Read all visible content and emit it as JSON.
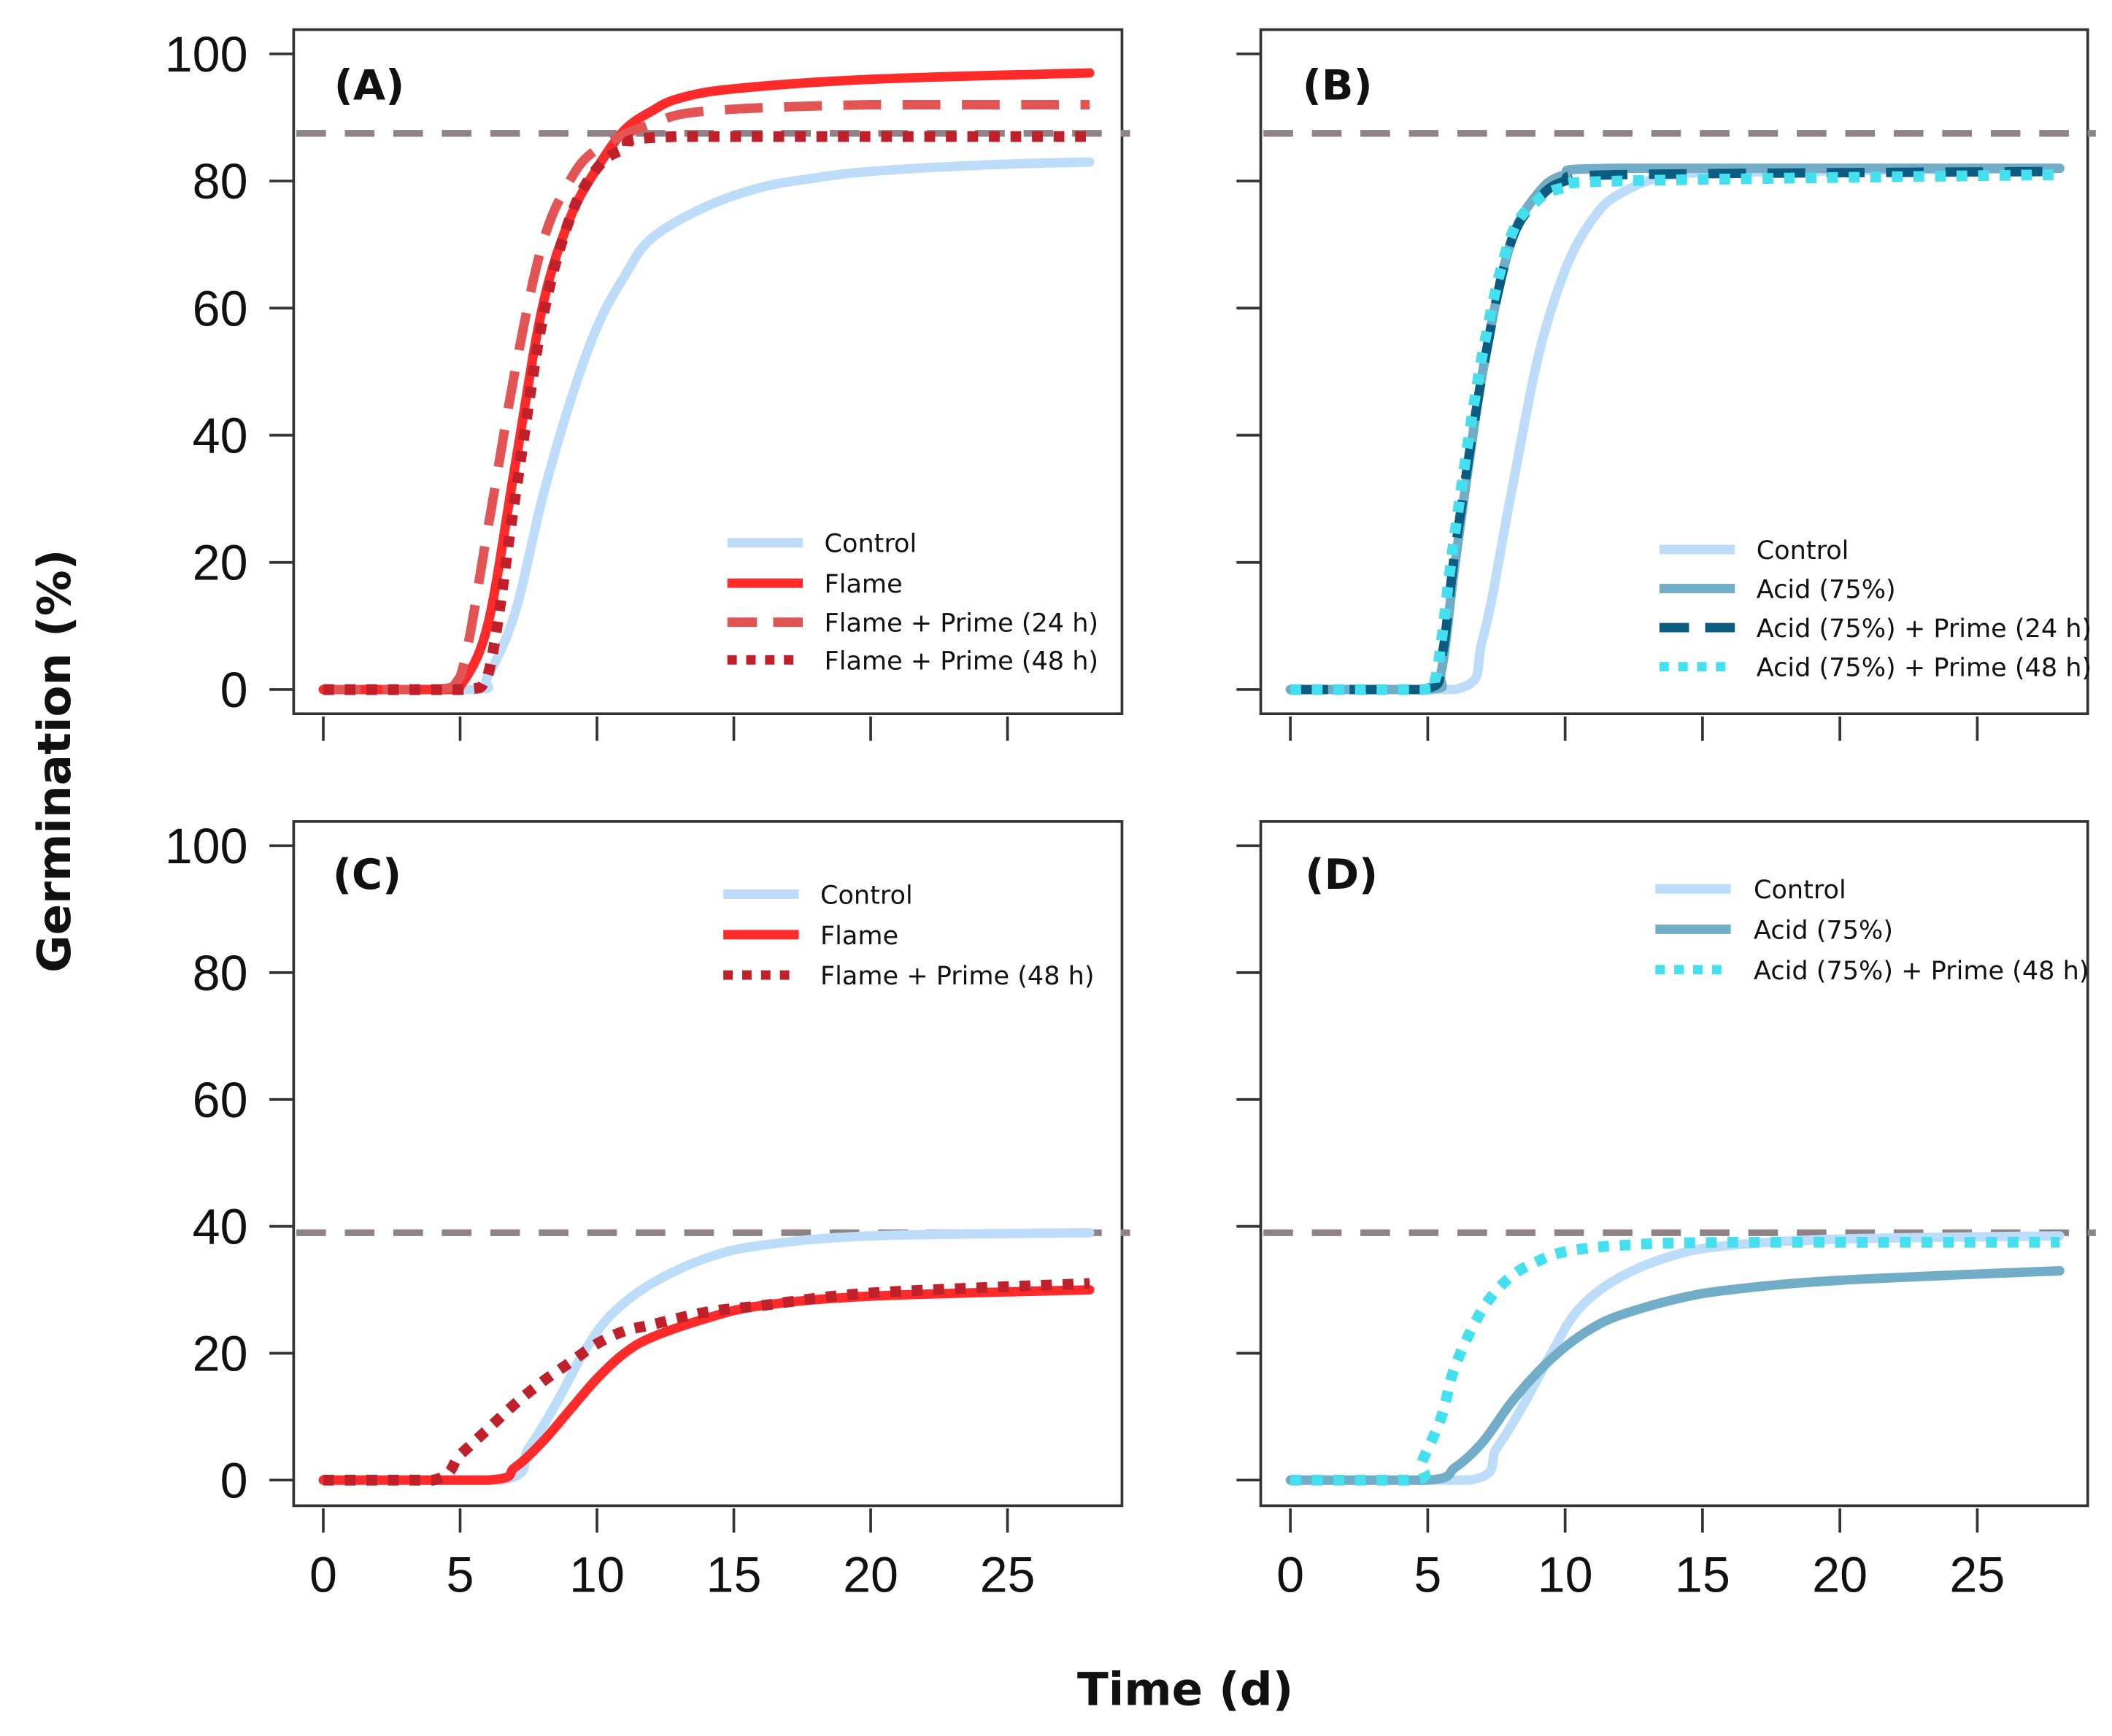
{
  "figure": {
    "ylabel": "Germination (%)",
    "xlabel": "Time (d)"
  },
  "colors": {
    "control": "#bcdcfa",
    "flame": "#ff2b2b",
    "flame_prime24": "#e35555",
    "flame_prime48": "#c0202a",
    "acid": "#72adc7",
    "acid_prime24": "#0b5c80",
    "acid_prime48": "#45e0ef",
    "reference": "#8e8286",
    "axis": "#333333"
  },
  "chart_data": [
    {
      "type": "line",
      "panel": "(A)",
      "xlim": [
        0,
        28
      ],
      "ylim": [
        0,
        100
      ],
      "xticks": [
        0,
        5,
        10,
        15,
        20,
        25
      ],
      "yticks": [
        0,
        20,
        40,
        60,
        80,
        100
      ],
      "show_xtick_labels": false,
      "show_ytick_labels": true,
      "reference_line": 87.5,
      "legend_position": "bottom-right",
      "series": [
        {
          "name": "Control",
          "style": "solid",
          "color_key": "control",
          "points": [
            [
              0,
              0
            ],
            [
              5.5,
              0
            ],
            [
              6,
              2
            ],
            [
              7,
              12
            ],
            [
              8,
              30
            ],
            [
              9,
              45
            ],
            [
              10,
              57
            ],
            [
              11,
              65
            ],
            [
              12,
              71
            ],
            [
              14,
              76
            ],
            [
              16,
              79
            ],
            [
              18,
              80.5
            ],
            [
              20,
              81.5
            ],
            [
              24,
              82.5
            ],
            [
              28,
              83
            ]
          ]
        },
        {
          "name": "Flame",
          "style": "solid",
          "color_key": "flame",
          "points": [
            [
              0,
              0
            ],
            [
              4.5,
              0
            ],
            [
              5,
              0.5
            ],
            [
              6,
              10
            ],
            [
              7,
              35
            ],
            [
              8,
              60
            ],
            [
              9,
              74
            ],
            [
              10,
              82
            ],
            [
              11,
              88
            ],
            [
              12,
              91
            ],
            [
              13,
              93
            ],
            [
              15,
              94.5
            ],
            [
              20,
              96
            ],
            [
              28,
              97
            ]
          ]
        },
        {
          "name": "Flame + Prime (24 h)",
          "style": "dashed",
          "color_key": "flame_prime24",
          "points": [
            [
              0,
              0
            ],
            [
              4,
              0
            ],
            [
              5,
              2
            ],
            [
              6,
              25
            ],
            [
              7,
              50
            ],
            [
              8,
              70
            ],
            [
              9,
              80
            ],
            [
              10,
              85
            ],
            [
              12,
              89
            ],
            [
              14,
              91
            ],
            [
              20,
              92
            ],
            [
              28,
              92
            ]
          ]
        },
        {
          "name": "Flame + Prime (48 h)",
          "style": "dotted",
          "color_key": "flame_prime48",
          "points": [
            [
              0,
              0
            ],
            [
              5,
              0
            ],
            [
              6,
              2
            ],
            [
              7,
              30
            ],
            [
              8,
              58
            ],
            [
              9,
              74
            ],
            [
              10,
              82
            ],
            [
              11,
              85
            ],
            [
              13,
              87
            ],
            [
              28,
              87
            ]
          ]
        }
      ]
    },
    {
      "type": "line",
      "panel": "(B)",
      "xlim": [
        0,
        28
      ],
      "ylim": [
        0,
        100
      ],
      "xticks": [
        0,
        5,
        10,
        15,
        20,
        25
      ],
      "yticks": [
        0,
        20,
        40,
        60,
        80,
        100
      ],
      "show_xtick_labels": false,
      "show_ytick_labels": false,
      "reference_line": 87.5,
      "legend_position": "bottom-right",
      "series": [
        {
          "name": "Control",
          "style": "solid",
          "color_key": "control",
          "points": [
            [
              0,
              0
            ],
            [
              6,
              0
            ],
            [
              7,
              8
            ],
            [
              8,
              30
            ],
            [
              9,
              52
            ],
            [
              10,
              66
            ],
            [
              11,
              74
            ],
            [
              12,
              78
            ],
            [
              14,
              81
            ],
            [
              18,
              81.5
            ],
            [
              28,
              82
            ]
          ]
        },
        {
          "name": "Acid (75%)",
          "style": "solid",
          "color_key": "acid",
          "points": [
            [
              0,
              0
            ],
            [
              5,
              0
            ],
            [
              5.5,
              3
            ],
            [
              6,
              20
            ],
            [
              7,
              50
            ],
            [
              8,
              70
            ],
            [
              9,
              78
            ],
            [
              10,
              81
            ],
            [
              12,
              82
            ],
            [
              28,
              82
            ]
          ]
        },
        {
          "name": "Acid (75%) + Prime (24 h)",
          "style": "dashed",
          "color_key": "acid_prime24",
          "points": [
            [
              0,
              0
            ],
            [
              4.8,
              0
            ],
            [
              5.5,
              5
            ],
            [
              6,
              22
            ],
            [
              7,
              50
            ],
            [
              8,
              70
            ],
            [
              9,
              77
            ],
            [
              10,
              80
            ],
            [
              12,
              81
            ],
            [
              28,
              81.5
            ]
          ]
        },
        {
          "name": "Acid (75%) + Prime (48 h)",
          "style": "dotted",
          "color_key": "acid_prime48",
          "points": [
            [
              0,
              0
            ],
            [
              4.8,
              0
            ],
            [
              5.3,
              2
            ],
            [
              6,
              25
            ],
            [
              7,
              53
            ],
            [
              8,
              71
            ],
            [
              9,
              77
            ],
            [
              10,
              79
            ],
            [
              12,
              80
            ],
            [
              28,
              81
            ]
          ]
        }
      ]
    },
    {
      "type": "line",
      "panel": "(C)",
      "xlim": [
        0,
        28
      ],
      "ylim": [
        0,
        100
      ],
      "xticks": [
        0,
        5,
        10,
        15,
        20,
        25
      ],
      "yticks": [
        0,
        20,
        40,
        60,
        80,
        100
      ],
      "show_xtick_labels": true,
      "show_ytick_labels": true,
      "reference_line": 39,
      "legend_position": "top-right",
      "series": [
        {
          "name": "Control",
          "style": "solid",
          "color_key": "control",
          "points": [
            [
              0,
              0
            ],
            [
              6.5,
              0
            ],
            [
              7.5,
              5
            ],
            [
              8.5,
              12
            ],
            [
              9.5,
              20
            ],
            [
              10.5,
              26
            ],
            [
              12,
              31
            ],
            [
              14,
              35
            ],
            [
              16,
              37
            ],
            [
              20,
              38.5
            ],
            [
              28,
              39
            ]
          ]
        },
        {
          "name": "Flame",
          "style": "solid",
          "color_key": "flame",
          "points": [
            [
              0,
              0
            ],
            [
              6,
              0
            ],
            [
              7,
              2
            ],
            [
              8,
              6
            ],
            [
              9,
              11
            ],
            [
              10,
              16
            ],
            [
              11,
              20
            ],
            [
              12,
              22.5
            ],
            [
              14,
              25.5
            ],
            [
              16,
              27.5
            ],
            [
              20,
              29
            ],
            [
              28,
              30
            ]
          ]
        },
        {
          "name": "Flame + Prime (48 h)",
          "style": "dotted",
          "color_key": "flame_prime48",
          "points": [
            [
              0,
              0
            ],
            [
              4,
              0
            ],
            [
              5,
              4
            ],
            [
              6,
              8
            ],
            [
              7,
              12
            ],
            [
              8,
              15.5
            ],
            [
              9,
              18.5
            ],
            [
              10,
              21.5
            ],
            [
              11,
              23.5
            ],
            [
              12,
              24.5
            ],
            [
              14,
              26.5
            ],
            [
              16,
              27.5
            ],
            [
              20,
              29.5
            ],
            [
              28,
              31
            ]
          ]
        }
      ]
    },
    {
      "type": "line",
      "panel": "(D)",
      "xlim": [
        0,
        28
      ],
      "ylim": [
        0,
        100
      ],
      "xticks": [
        0,
        5,
        10,
        15,
        20,
        25
      ],
      "yticks": [
        0,
        20,
        40,
        60,
        80,
        100
      ],
      "show_xtick_labels": true,
      "show_ytick_labels": false,
      "reference_line": 39,
      "legend_position": "top-right",
      "series": [
        {
          "name": "Control",
          "style": "solid",
          "color_key": "control",
          "points": [
            [
              0,
              0
            ],
            [
              6.5,
              0
            ],
            [
              7.5,
              5
            ],
            [
              8.5,
              12
            ],
            [
              9.5,
              20
            ],
            [
              10.5,
              27
            ],
            [
              12,
              32
            ],
            [
              14,
              35.5
            ],
            [
              16,
              37
            ],
            [
              20,
              38
            ],
            [
              28,
              38.5
            ]
          ]
        },
        {
          "name": "Acid (75%)",
          "style": "solid",
          "color_key": "acid",
          "points": [
            [
              0,
              0
            ],
            [
              5,
              0
            ],
            [
              6,
              2
            ],
            [
              7,
              6
            ],
            [
              8,
              12
            ],
            [
              9,
              17
            ],
            [
              10,
              21
            ],
            [
              11,
              24
            ],
            [
              12,
              26
            ],
            [
              14,
              28.5
            ],
            [
              16,
              30
            ],
            [
              20,
              31.5
            ],
            [
              28,
              33
            ]
          ]
        },
        {
          "name": "Acid (75%) + Prime (48 h)",
          "style": "dotted",
          "color_key": "acid_prime48",
          "points": [
            [
              0,
              0
            ],
            [
              4.5,
              0
            ],
            [
              4.8,
              3
            ],
            [
              5.5,
              10
            ],
            [
              6,
              18
            ],
            [
              7,
              27
            ],
            [
              8,
              32
            ],
            [
              9,
              34.5
            ],
            [
              10,
              36
            ],
            [
              12,
              37
            ],
            [
              16,
              37.5
            ],
            [
              28,
              37.5
            ]
          ]
        }
      ]
    }
  ]
}
